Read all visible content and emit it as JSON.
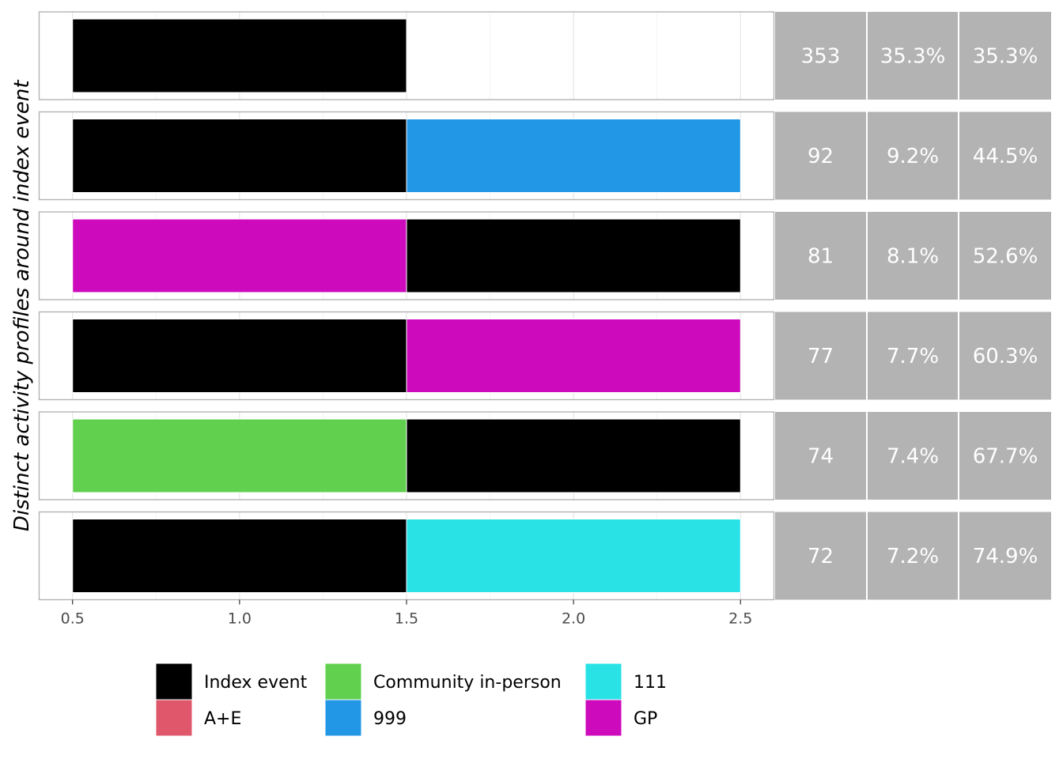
{
  "chart_data": {
    "type": "bar",
    "orientation": "horizontal",
    "ylabel": "Distinct activity profiles around index event",
    "xlim": [
      0.4,
      2.6
    ],
    "x_ticks": [
      "0.5",
      "1.0",
      "1.5",
      "2.0",
      "2.5"
    ],
    "x_tick_values": [
      0.5,
      1.0,
      1.5,
      2.0,
      2.5
    ],
    "grid": true,
    "legend_position": "bottom",
    "series": [
      {
        "name": "Index event",
        "color": "#000000"
      },
      {
        "name": "A+E",
        "color": "#E0576B"
      },
      {
        "name": "Community in-person",
        "color": "#61D04F"
      },
      {
        "name": "999",
        "color": "#2297E6"
      },
      {
        "name": "111",
        "color": "#28E2E5"
      },
      {
        "name": "GP",
        "color": "#CD0BBC"
      }
    ],
    "legend_order": [
      "Index event",
      "A+E",
      "Community in-person",
      "999",
      "111",
      "GP"
    ],
    "profiles": [
      {
        "activities": [
          "Index event"
        ],
        "count": "353",
        "percent": "35.3%",
        "cumulative": "35.3%"
      },
      {
        "activities": [
          "Index event",
          "999"
        ],
        "count": "92",
        "percent": "9.2%",
        "cumulative": "44.5%"
      },
      {
        "activities": [
          "GP",
          "Index event"
        ],
        "count": "81",
        "percent": "8.1%",
        "cumulative": "52.6%"
      },
      {
        "activities": [
          "Index event",
          "GP"
        ],
        "count": "77",
        "percent": "7.7%",
        "cumulative": "60.3%"
      },
      {
        "activities": [
          "Community in-person",
          "Index event"
        ],
        "count": "74",
        "percent": "7.4%",
        "cumulative": "67.7%"
      },
      {
        "activities": [
          "Index event",
          "111"
        ],
        "count": "72",
        "percent": "7.2%",
        "cumulative": "74.9%"
      }
    ],
    "table_cell_color": "#B3B3B3"
  }
}
